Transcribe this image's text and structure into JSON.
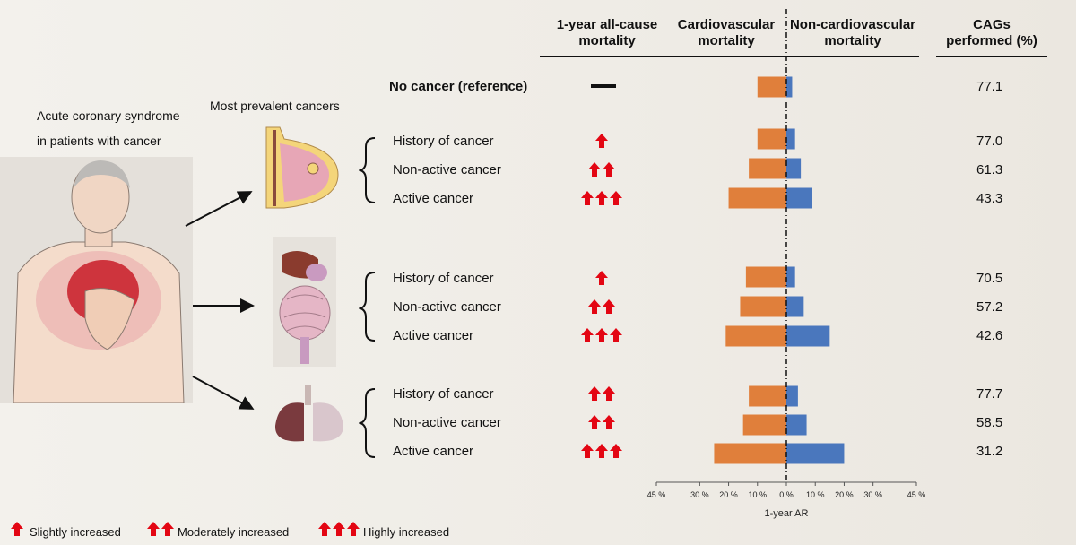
{
  "left": {
    "title_line1": "Acute coronary syndrome",
    "title_line2": "in patients with cancer",
    "most_prevalent": "Most prevalent cancers"
  },
  "headers": {
    "mortality_line1": "1-year all-cause",
    "mortality_line2": "mortality",
    "cardio_line1": "Cardiovascular",
    "cardio_line2": "mortality",
    "noncardio_line1": "Non-cardiovascular",
    "noncardio_line2": "mortality",
    "cags_line1": "CAGs",
    "cags_line2": "performed (%)"
  },
  "reference": {
    "label": "No cancer (reference)",
    "cags": "77.1"
  },
  "groups": [
    {
      "organ": "breast",
      "rows": [
        {
          "label": "History of cancer",
          "arrows": 1,
          "cags": "77.0"
        },
        {
          "label": "Non-active cancer",
          "arrows": 2,
          "cags": "61.3"
        },
        {
          "label": "Active cancer",
          "arrows": 3,
          "cags": "43.3"
        }
      ]
    },
    {
      "organ": "digestive",
      "rows": [
        {
          "label": "History of cancer",
          "arrows": 1,
          "cags": "70.5"
        },
        {
          "label": "Non-active cancer",
          "arrows": 2,
          "cags": "57.2"
        },
        {
          "label": "Active cancer",
          "arrows": 3,
          "cags": "42.6"
        }
      ]
    },
    {
      "organ": "lung",
      "rows": [
        {
          "label": "History of cancer",
          "arrows": 2,
          "cags": "77.7"
        },
        {
          "label": "Non-active cancer",
          "arrows": 2,
          "cags": "58.5"
        },
        {
          "label": "Active cancer",
          "arrows": 3,
          "cags": "31.2"
        }
      ]
    }
  ],
  "chart_data": {
    "type": "bar",
    "orientation": "horizontal-diverging",
    "categories": [
      "No cancer (reference)",
      "Breast - History of cancer",
      "Breast - Non-active cancer",
      "Breast - Active cancer",
      "Digestive - History of cancer",
      "Digestive - Non-active cancer",
      "Digestive - Active cancer",
      "Lung - History of cancer",
      "Lung - Non-active cancer",
      "Lung - Active cancer"
    ],
    "series": [
      {
        "name": "Cardiovascular mortality",
        "color": "#e07f3b",
        "values": [
          10,
          10,
          13,
          20,
          14,
          16,
          21,
          13,
          15,
          25
        ]
      },
      {
        "name": "Non-cardiovascular mortality",
        "color": "#4a77bd",
        "values": [
          2,
          3,
          5,
          9,
          3,
          6,
          15,
          4,
          7,
          20
        ]
      }
    ],
    "xlabel": "1-year AR",
    "xlim": [
      -45,
      45
    ],
    "tick_labels": [
      "45 %",
      "30 %",
      "20 %",
      "10 %",
      "0 %",
      "10 %",
      "20 %",
      "30 %",
      "45 %"
    ]
  },
  "legend": {
    "slight": "Slightly increased",
    "moderate": "Moderately increased",
    "high": "Highly increased"
  },
  "colors": {
    "arrow": "#e30613",
    "orange": "#e07f3b",
    "blue": "#4a77bd"
  }
}
